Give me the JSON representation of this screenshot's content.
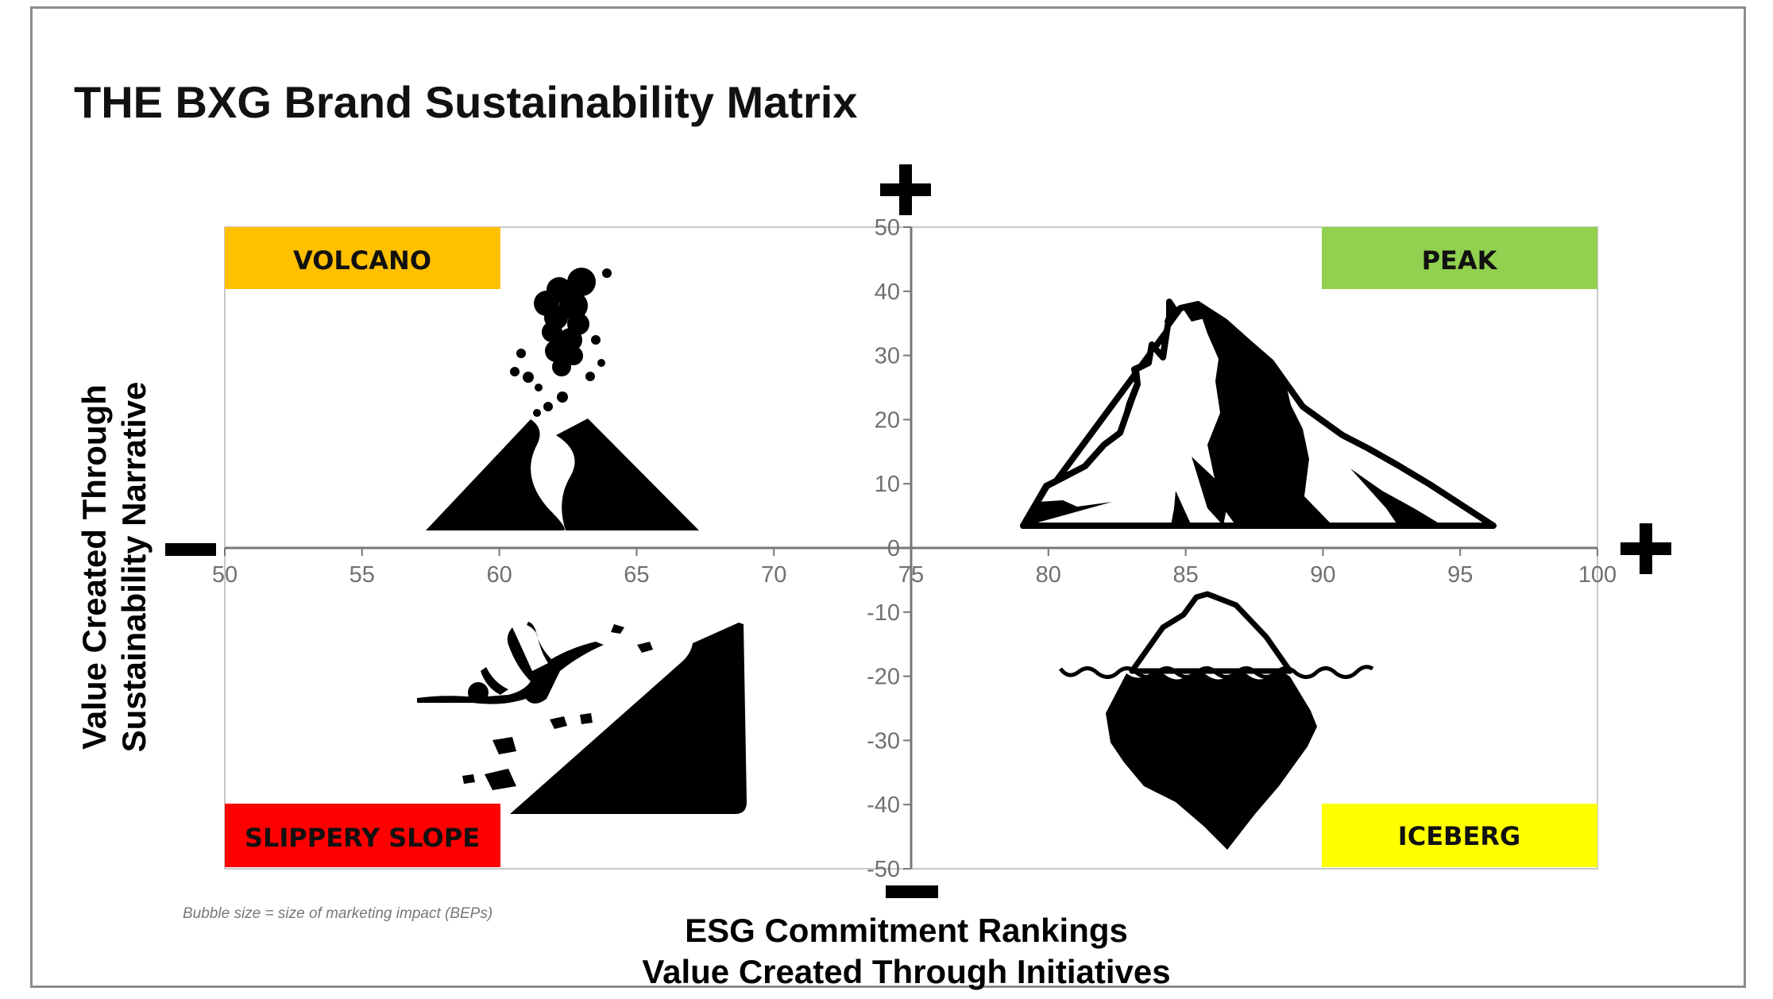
{
  "chart_data": {
    "type": "scatter",
    "title": "THE BXG Brand Sustainability Matrix",
    "xlabel": [
      "ESG Commitment Rankings",
      "Value Created Through Initiatives"
    ],
    "ylabel": [
      "Value Created Through",
      "Sustainability Narrative"
    ],
    "xlim": [
      50,
      100
    ],
    "ylim": [
      -50,
      50
    ],
    "x_ticks": [
      50,
      55,
      60,
      65,
      70,
      75,
      80,
      85,
      90,
      95,
      100
    ],
    "y_ticks": [
      50,
      40,
      30,
      20,
      10,
      0,
      -10,
      -20,
      -30,
      -40,
      -50
    ],
    "x_axis_crosses_at": 0,
    "y_axis_crosses_at": 75,
    "series": [],
    "grid": false,
    "quadrants": [
      {
        "label": "VOLCANO",
        "color": "#FFC000",
        "position": "top-left",
        "icon": "volcano-icon"
      },
      {
        "label": "PEAK",
        "color": "#92D050",
        "position": "top-right",
        "icon": "mountain-peak-icon"
      },
      {
        "label": "SLIPPERY SLOPE",
        "color": "#FF0000",
        "position": "bottom-left",
        "icon": "falling-person-icon"
      },
      {
        "label": "ICEBERG",
        "color": "#FFFF00",
        "position": "bottom-right",
        "icon": "iceberg-icon"
      }
    ],
    "axis_end_symbols": {
      "y_top": "+",
      "x_right": "+",
      "x_left": "−",
      "y_bottom": "−"
    },
    "annotations": [
      "Bubble size = size of marketing impact (BEPs)"
    ]
  }
}
